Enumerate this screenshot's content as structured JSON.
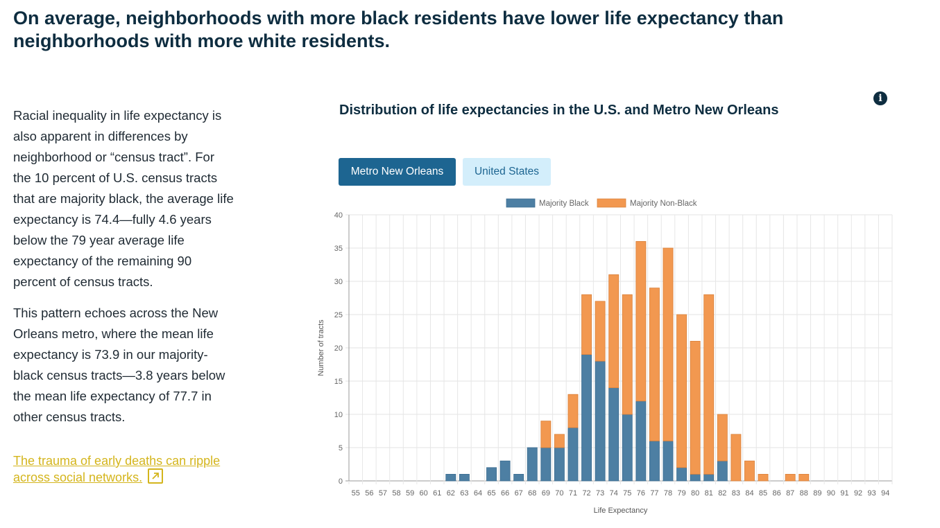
{
  "headline": "On average, neighborhoods with more black residents have lower life expectancy than neighborhoods with more white residents.",
  "body": {
    "paragraph1": "Racial inequality in life expectancy is also apparent in differences by neighborhood or “census tract”. For the 10 percent of U.S. census tracts that are majority black, the average life expectancy is 74.4—fully 4.6 years below the 79 year average life expectancy of the remaining 90 percent of census tracts.",
    "paragraph2": "This pattern echoes across the New Orleans metro, where the mean life expectancy is 73.9 in our majority-black census tracts—3.8 years below the mean life expectancy of 77.7 in other census tracts."
  },
  "link": {
    "text": "The trauma of early deaths can ripple across social networks.",
    "icon": "external-link-icon"
  },
  "chart_section": {
    "title": "Distribution of life expectancies in the U.S. and Metro New Orleans",
    "info_icon": "info-icon",
    "tabs": [
      {
        "label": "Metro New Orleans",
        "active": true
      },
      {
        "label": "United States",
        "active": false
      }
    ]
  },
  "colors": {
    "majority_black": "#4d7fa3",
    "majority_non_black": "#f29850",
    "tab_active": "#1d6591",
    "tab_inactive": "#d3eefb",
    "link": "#d4b51c"
  },
  "chart_data": {
    "type": "bar",
    "stacked": true,
    "title": "",
    "xlabel": "Life Expectancy",
    "ylabel": "Number of tracts",
    "ylim": [
      0,
      40
    ],
    "yticks": [
      0,
      5,
      10,
      15,
      20,
      25,
      30,
      35,
      40
    ],
    "grid": true,
    "legend_position": "top-center",
    "categories": [
      "55",
      "56",
      "57",
      "58",
      "59",
      "60",
      "61",
      "62",
      "63",
      "64",
      "65",
      "66",
      "67",
      "68",
      "69",
      "70",
      "71",
      "72",
      "73",
      "74",
      "75",
      "76",
      "77",
      "78",
      "79",
      "80",
      "81",
      "82",
      "83",
      "84",
      "85",
      "86",
      "87",
      "88",
      "89",
      "90",
      "91",
      "92",
      "93",
      "94"
    ],
    "series": [
      {
        "name": "Majority Black",
        "values": [
          0,
          0,
          0,
          0,
          0,
          0,
          0,
          1,
          1,
          0,
          2,
          3,
          1,
          5,
          5,
          5,
          8,
          19,
          18,
          14,
          10,
          12,
          6,
          6,
          2,
          1,
          1,
          3,
          0,
          0,
          0,
          0,
          0,
          0,
          0,
          0,
          0,
          0,
          0,
          0
        ]
      },
      {
        "name": "Majority Non-Black",
        "values": [
          0,
          0,
          0,
          0,
          0,
          0,
          0,
          0,
          0,
          0,
          0,
          0,
          0,
          0,
          4,
          2,
          5,
          9,
          9,
          17,
          18,
          24,
          23,
          29,
          23,
          20,
          27,
          7,
          7,
          3,
          1,
          0,
          1,
          1,
          0,
          0,
          0,
          0,
          0,
          0
        ]
      }
    ]
  }
}
